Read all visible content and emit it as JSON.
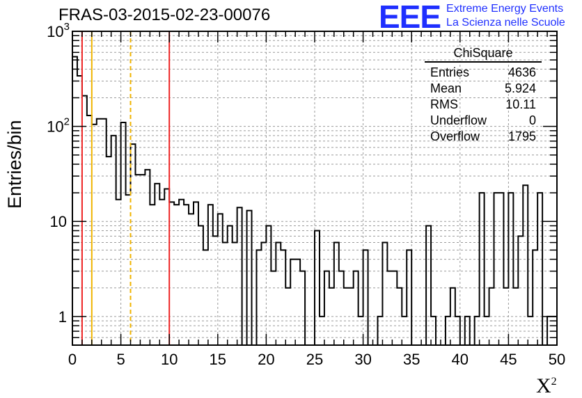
{
  "header": {
    "title": "FRAS-03-2015-02-23-00076"
  },
  "logo": {
    "mark": "EEE",
    "line1": "Extreme Energy Events",
    "line2": "La Scienza nelle Scuole",
    "color": "#1f2fff"
  },
  "stats_box": {
    "name": "ChiSquare",
    "rows": [
      {
        "label": "Entries",
        "value": "4636"
      },
      {
        "label": "Mean",
        "value": "5.924"
      },
      {
        "label": "RMS",
        "value": "10.11"
      },
      {
        "label": "Underflow",
        "value": "0"
      },
      {
        "label": "Overflow",
        "value": "1795"
      }
    ]
  },
  "chart_data": {
    "type": "histogram",
    "title": "FRAS-03-2015-02-23-00076",
    "xlabel": "X",
    "xlabel_superscript": "2",
    "ylabel": "Entries/bin",
    "x_range": [
      0,
      50
    ],
    "y_range": [
      0.5,
      1000
    ],
    "y_scale": "log",
    "grid": true,
    "bin_width": 0.5,
    "x_ticks": [
      "0",
      "5",
      "10",
      "15",
      "20",
      "25",
      "30",
      "35",
      "40",
      "45",
      "50"
    ],
    "y_ticks": [
      {
        "value": 1,
        "label": "1"
      },
      {
        "value": 10,
        "label": "10"
      },
      {
        "value": 100,
        "label": "10",
        "exp": "2"
      },
      {
        "value": 1000,
        "label": "10",
        "exp": "3"
      }
    ],
    "bin_values": [
      540,
      340,
      210,
      130,
      105,
      120,
      120,
      48,
      80,
      17,
      110,
      19,
      65,
      31,
      31,
      35,
      15,
      25,
      17,
      22,
      16,
      15,
      17,
      15,
      12,
      16,
      9,
      5,
      15,
      7,
      12,
      6,
      9,
      6,
      14,
      0,
      13,
      0,
      5,
      6,
      9,
      3,
      6,
      5,
      2,
      4,
      4,
      3,
      0,
      0,
      8,
      1,
      3,
      2,
      6,
      3,
      2,
      2,
      3,
      1,
      5,
      0,
      0,
      1,
      6,
      3,
      3,
      2,
      1,
      5,
      0,
      0,
      0,
      9,
      1,
      0,
      0,
      1,
      2,
      1,
      0,
      1,
      0,
      1,
      20,
      1,
      2,
      20,
      20,
      2,
      20,
      2,
      7,
      24,
      1,
      5,
      20,
      0,
      1,
      1
    ],
    "vertical_lines": [
      {
        "x": 1.0,
        "color": "#ee2222",
        "style": "solid"
      },
      {
        "x": 2.0,
        "color": "#f0b400",
        "style": "solid"
      },
      {
        "x": 6.0,
        "color": "#f0b400",
        "style": "dashed"
      },
      {
        "x": 10.0,
        "color": "#ee2222",
        "style": "solid"
      }
    ]
  }
}
